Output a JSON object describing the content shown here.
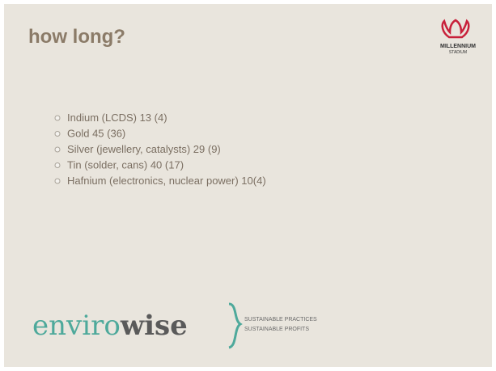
{
  "slide": {
    "title": "how long?",
    "logo": {
      "line1": "MILLENNIUM",
      "line2": "STADIUM"
    },
    "bullets": [
      "Indium (LCDS) 13 (4)",
      "Gold 45 (36)",
      "Silver (jewellery, catalysts) 29 (9)",
      "Tin (solder, cans) 40 (17)",
      "Hafnium (electronics, nuclear power) 10(4)"
    ],
    "footer": {
      "brand_a": "enviro",
      "brand_b": "wise",
      "tag1": "SUSTAINABLE PRACTICES",
      "tag2": "SUSTAINABLE PROFITS"
    }
  }
}
